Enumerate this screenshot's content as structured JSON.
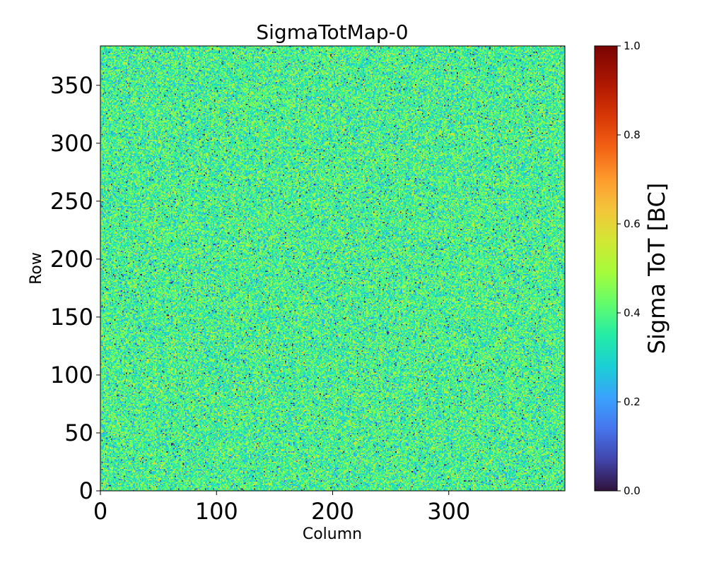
{
  "chart_data": {
    "type": "heatmap",
    "title": "SigmaTotMap-0",
    "xlabel": "Column",
    "ylabel": "Row",
    "xlim": [
      0,
      400
    ],
    "ylim": [
      0,
      384
    ],
    "x_ticks": [
      0,
      100,
      200,
      300
    ],
    "y_ticks": [
      0,
      50,
      100,
      150,
      200,
      250,
      300,
      350
    ],
    "grid": false,
    "colorbar": {
      "label": "Sigma ToT [BC]",
      "colormap": "turbo",
      "range": [
        0.0,
        1.0
      ],
      "ticks": [
        "0.0",
        "0.2",
        "0.4",
        "0.6",
        "0.8",
        "1.0"
      ],
      "position": "right"
    },
    "value_distribution": {
      "description": "noisy map, values concentrated around 0.3-0.5",
      "mean": 0.38,
      "std": 0.09,
      "min": 0.0,
      "max": 1.0
    }
  }
}
